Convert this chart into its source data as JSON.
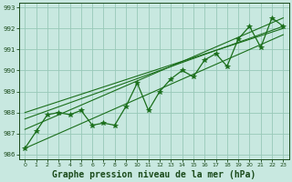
{
  "hours": [
    0,
    1,
    2,
    3,
    4,
    5,
    6,
    7,
    8,
    9,
    10,
    11,
    12,
    13,
    14,
    15,
    16,
    17,
    18,
    19,
    20,
    21,
    22,
    23
  ],
  "pressure": [
    986.3,
    987.1,
    987.9,
    988.0,
    987.9,
    988.1,
    987.4,
    987.5,
    987.4,
    988.3,
    989.4,
    988.1,
    989.0,
    989.6,
    990.0,
    989.7,
    990.5,
    990.8,
    990.2,
    991.5,
    992.1,
    991.1,
    992.5,
    992.1
  ],
  "line_color": "#1a6e1a",
  "marker_color": "#1a6e1a",
  "bg_color": "#c8e8e0",
  "grid_color": "#98c8b8",
  "xlabel": "Graphe pression niveau de la mer (hPa)",
  "xlabel_fontsize": 7,
  "ylim": [
    985.8,
    993.2
  ],
  "yticks": [
    986,
    987,
    988,
    989,
    990,
    991,
    992,
    993
  ],
  "xticks": [
    0,
    1,
    2,
    3,
    4,
    5,
    6,
    7,
    8,
    9,
    10,
    11,
    12,
    13,
    14,
    15,
    16,
    17,
    18,
    19,
    20,
    21,
    22,
    23
  ],
  "trend_lines": [
    [
      0,
      986.3,
      23,
      991.7
    ],
    [
      0,
      987.2,
      23,
      992.5
    ],
    [
      0,
      987.7,
      23,
      992.1
    ],
    [
      0,
      988.0,
      23,
      992.0
    ]
  ],
  "trend_color": "#1a6e1a"
}
